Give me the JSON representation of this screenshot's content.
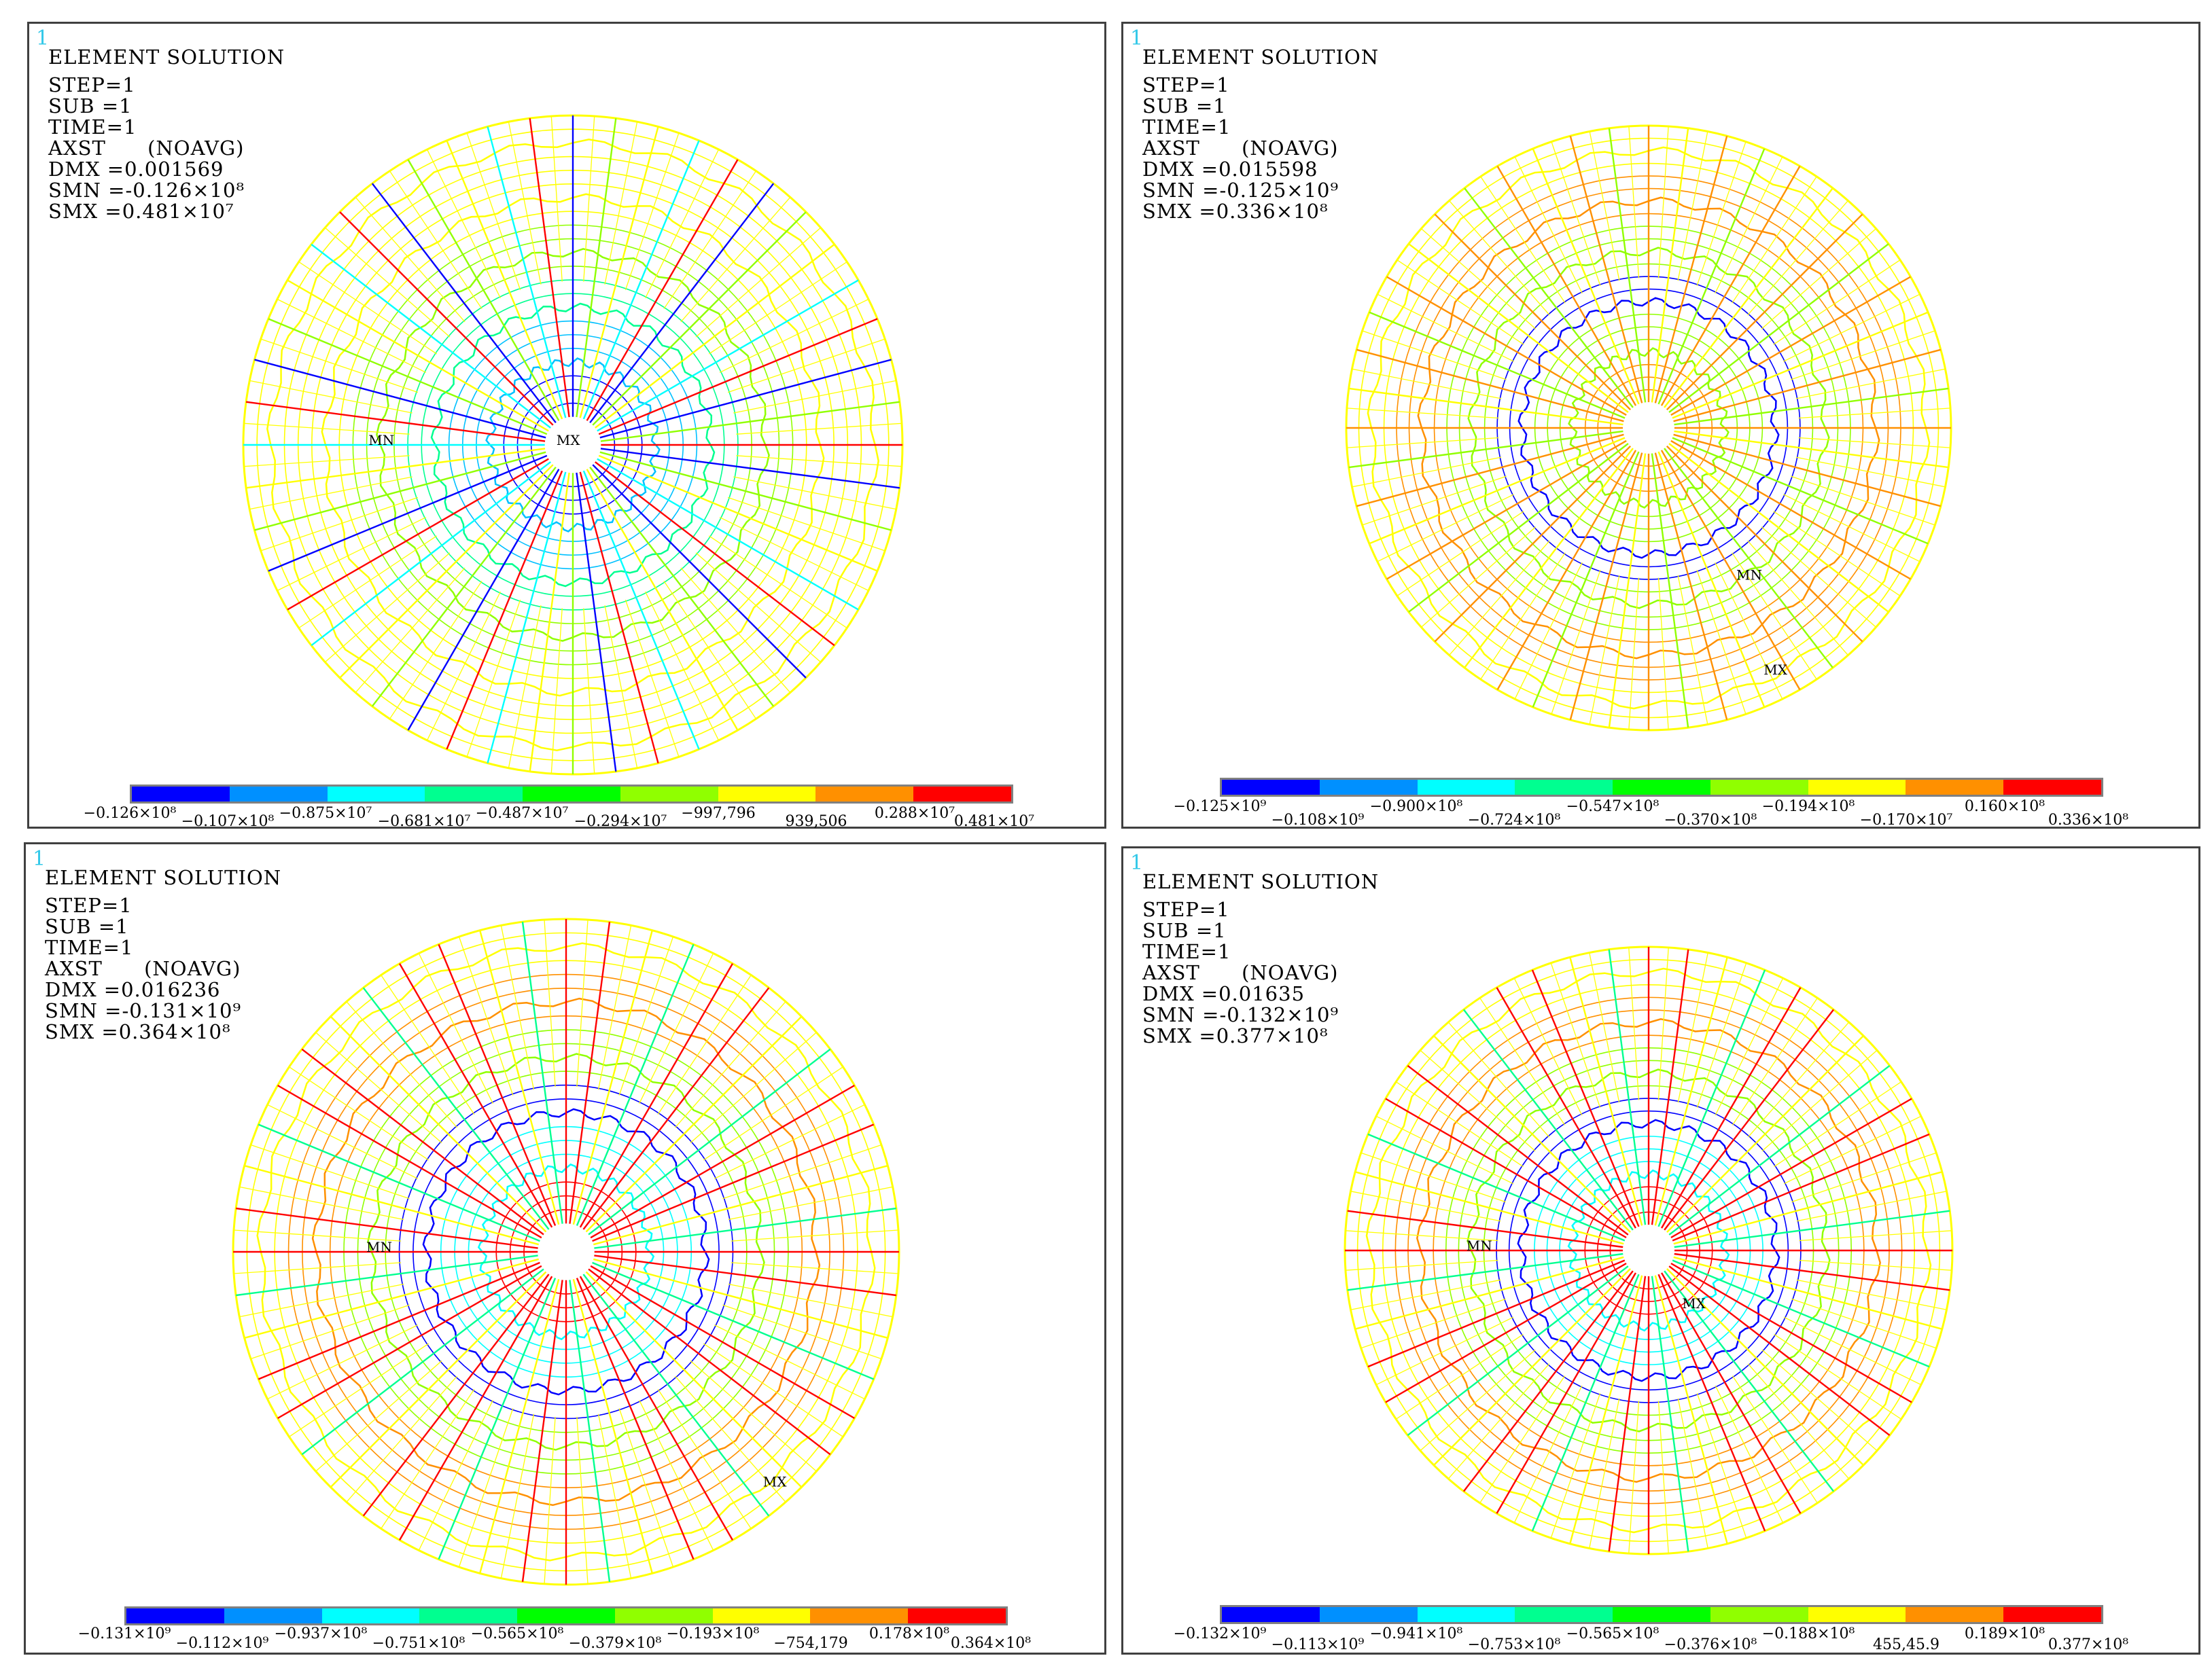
{
  "colormap": [
    "#0000ff",
    "#0090ff",
    "#00ffff",
    "#00ff90",
    "#00ff00",
    "#90ff00",
    "#ffff00",
    "#ff9000",
    "#ff0000"
  ],
  "panels": [
    {
      "window_no": "1",
      "title": "ELEMENT SOLUTION",
      "lines": [
        "STEP=1",
        "SUB =1",
        "TIME=1",
        "AXST      (NOAVG)",
        "DMX =0.001569",
        "SMN =-0.126×10⁸",
        "SMX =0.481×10⁷"
      ],
      "legend_top": [
        "−0.126×10⁸",
        "−0.875×10⁷",
        "−0.487×10⁷",
        "−997,796",
        "0.288×10⁷"
      ],
      "legend_bottom": [
        "−0.107×10⁸",
        "−0.681×10⁷",
        "−0.294×10⁷",
        "939,506",
        "0.481×10⁷"
      ],
      "mn_label": "MN",
      "mx_label": "MX",
      "mn_angle": 180,
      "mx_angle": 180,
      "mn_r": 0.62,
      "mx_r": 0.05,
      "ring_colors": [
        "#0000ff",
        "#00c0ff",
        "#00ff90",
        "#90ff00",
        "#ffff00",
        "#ffff00"
      ],
      "radial_palette": [
        "#ff0000",
        "#0000ff",
        "#90ff00",
        "#ffff00",
        "#00ffff"
      ]
    },
    {
      "window_no": "1",
      "title": "ELEMENT SOLUTION",
      "lines": [
        "STEP=1",
        "SUB =1",
        "TIME=1",
        "AXST      (NOAVG)",
        "DMX =0.015598",
        "SMN =-0.125×10⁹",
        "SMX =0.336×10⁸"
      ],
      "legend_top": [
        "−0.125×10⁹",
        "−0.900×10⁸",
        "−0.547×10⁸",
        "−0.194×10⁸",
        "0.160×10⁸"
      ],
      "legend_bottom": [
        "−0.108×10⁹",
        "−0.724×10⁸",
        "−0.370×10⁸",
        "−0.170×10⁷",
        "0.336×10⁸"
      ],
      "mn_label": "MN",
      "mx_label": "MX",
      "mn_angle": 60,
      "mx_angle": 65,
      "mn_r": 0.58,
      "mx_r": 0.9,
      "ring_colors": [
        "#ff9000",
        "#90ff00",
        "#0000ff",
        "#90ff00",
        "#ff9000",
        "#ffff00"
      ],
      "radial_palette": [
        "#ff9000",
        "#ffff00",
        "#ff9000",
        "#90ff00"
      ]
    },
    {
      "window_no": "1",
      "title": "ELEMENT SOLUTION",
      "lines": [
        "STEP=1",
        "SUB =1",
        "TIME=1",
        "AXST      (NOAVG)",
        "DMX =0.016236",
        "SMN =-0.131×10⁹",
        "SMX =0.364×10⁸"
      ],
      "legend_top": [
        "−0.131×10⁹",
        "−0.937×10⁸",
        "−0.565×10⁸",
        "−0.193×10⁸",
        "0.178×10⁸"
      ],
      "legend_bottom": [
        "−0.112×10⁹",
        "−0.751×10⁸",
        "−0.379×10⁸",
        "−754,179",
        "0.364×10⁸"
      ],
      "mn_label": "MN",
      "mx_label": "MX",
      "mn_angle": 180,
      "mx_angle": 50,
      "mn_r": 0.6,
      "mx_r": 0.92,
      "ring_colors": [
        "#ff0000",
        "#00ffff",
        "#0000ff",
        "#90ff00",
        "#ff9000",
        "#ffff00"
      ],
      "radial_palette": [
        "#ff0000",
        "#ff0000",
        "#ffff00",
        "#00ff90"
      ]
    },
    {
      "window_no": "1",
      "title": "ELEMENT SOLUTION",
      "lines": [
        "STEP=1",
        "SUB =1",
        "TIME=1",
        "AXST      (NOAVG)",
        "DMX =0.01635",
        "SMN =-0.132×10⁹",
        "SMX =0.377×10⁸"
      ],
      "legend_top": [
        "−0.132×10⁹",
        "−0.941×10⁸",
        "−0.565×10⁸",
        "−0.188×10⁸",
        "0.189×10⁸"
      ],
      "legend_bottom": [
        "−0.113×10⁹",
        "−0.753×10⁸",
        "−0.376×10⁸",
        "455,45.9",
        "0.377×10⁸"
      ],
      "mn_label": "MN",
      "mx_label": "MX",
      "mn_angle": 180,
      "mx_angle": 60,
      "mn_r": 0.6,
      "mx_r": 0.22,
      "ring_colors": [
        "#ff0000",
        "#00ffff",
        "#0000ff",
        "#90ff00",
        "#ff9000",
        "#ffff00"
      ],
      "radial_palette": [
        "#ff0000",
        "#ff0000",
        "#ffff00",
        "#00ff90"
      ]
    }
  ]
}
